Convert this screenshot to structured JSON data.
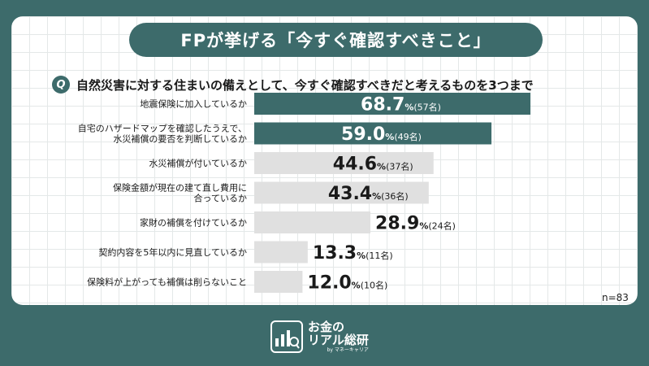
{
  "title": "FPが挙げる「今すぐ確認すべきこと」",
  "question_badge": "Q",
  "question": "自然災害に対する住まいの備えとして、今すぐ確認すべきだと考えるものを3つまで",
  "sample_size": "n=83",
  "brand": {
    "line1": "お金の",
    "line2": "リアル総研",
    "sub": "by マネーキャリア"
  },
  "colors": {
    "highlight": "#3d6b6b",
    "bar": "#e0e0e0",
    "background": "#3d6b6b"
  },
  "chart_data": {
    "type": "bar",
    "orientation": "horizontal",
    "categories": [
      "地震保険に加入しているか",
      "自宅のハザードマップを確認したうえで、\n水災補償の要否を判断しているか",
      "水災補償が付いているか",
      "保険金額が現在の建て直し費用に\n合っているか",
      "家財の補償を付けているか",
      "契約内容を5年以内に見直しているか",
      "保険料が上がっても補償は削らないこと"
    ],
    "values": [
      68.7,
      59.0,
      44.6,
      43.4,
      28.9,
      13.3,
      12.0
    ],
    "value_labels": [
      "68.7",
      "59.0",
      "44.6",
      "43.4",
      "28.9",
      "13.3",
      "12.0"
    ],
    "counts": [
      "(57名)",
      "(49名)",
      "(37名)",
      "(36名)",
      "(24名)",
      "(11名)",
      "(10名)"
    ],
    "unit": "%",
    "highlighted": [
      true,
      true,
      false,
      false,
      false,
      false,
      false
    ],
    "xlim": [
      0,
      100
    ]
  }
}
